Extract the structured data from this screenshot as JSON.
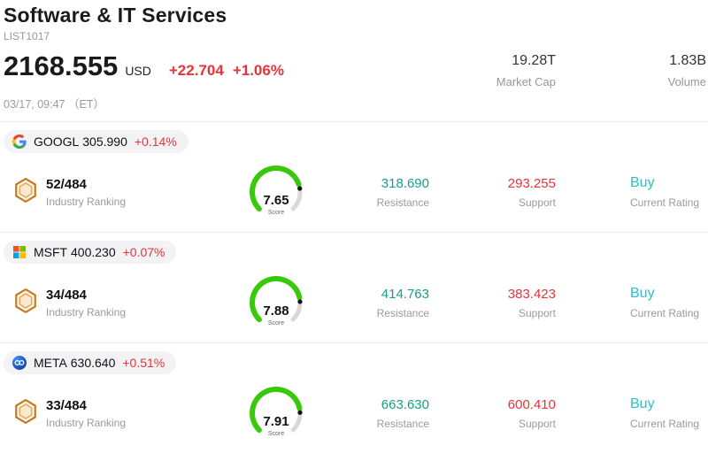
{
  "colors": {
    "red": "#e8333b",
    "teal": "#16a085",
    "cyan": "#2cc0c6",
    "green": "#38c90c",
    "track": "#d9d9d9"
  },
  "header": {
    "title": "Software & IT Services",
    "list_id": "LIST1017",
    "price": "2168.555",
    "currency": "USD",
    "change": "+22.704",
    "change_pct": "+1.06%",
    "timestamp": "03/17, 09:47 （ET）",
    "market_cap": {
      "value": "19.28T",
      "label": "Market Cap"
    },
    "volume": {
      "value": "1.83B",
      "label": "Volume"
    }
  },
  "rows": [
    {
      "ticker": "GOOGL",
      "price": "305.990",
      "change_pct": "+0.14%",
      "logo": "google-logo",
      "ranking": "52/484",
      "ranking_label": "Industry Ranking",
      "score": "7.65",
      "score_label": "Score",
      "resistance": "318.690",
      "resistance_label": "Resistance",
      "support": "293.255",
      "support_label": "Support",
      "rating": "Buy",
      "rating_label": "Current Rating"
    },
    {
      "ticker": "MSFT",
      "price": "400.230",
      "change_pct": "+0.07%",
      "logo": "microsoft-logo",
      "ranking": "34/484",
      "ranking_label": "Industry Ranking",
      "score": "7.88",
      "score_label": "Score",
      "resistance": "414.763",
      "resistance_label": "Resistance",
      "support": "383.423",
      "support_label": "Support",
      "rating": "Buy",
      "rating_label": "Current Rating"
    },
    {
      "ticker": "META",
      "price": "630.640",
      "change_pct": "+0.51%",
      "logo": "meta-logo",
      "ranking": "33/484",
      "ranking_label": "Industry Ranking",
      "score": "7.91",
      "score_label": "Score",
      "resistance": "663.630",
      "resistance_label": "Resistance",
      "support": "600.410",
      "support_label": "Support",
      "rating": "Buy",
      "rating_label": "Current Rating"
    }
  ]
}
